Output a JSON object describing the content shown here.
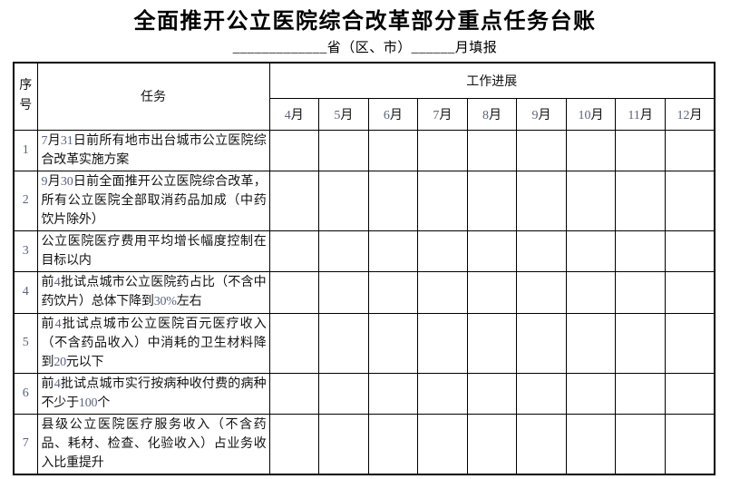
{
  "page": {
    "title": "全面推开公立医院综合改革部分重点任务台账",
    "subtitle": "_____________省（区、市）______月填报"
  },
  "table": {
    "header": {
      "serial": "序号",
      "task": "任务",
      "progress": "工作进展",
      "months": [
        "4月",
        "5月",
        "6月",
        "7月",
        "8月",
        "9月",
        "10月",
        "11月",
        "12月"
      ]
    },
    "rows": [
      {
        "no": "1",
        "task": "7月31日前所有地市出台城市公立医院综合改革实施方案"
      },
      {
        "no": "2",
        "task": "9月30日前全面推开公立医院综合改革，所有公立医院全部取消药品加成（中药饮片除外）"
      },
      {
        "no": "3",
        "task": "公立医院医疗费用平均增长幅度控制在目标以内"
      },
      {
        "no": "4",
        "task": "前4批试点城市公立医院药占比（不含中药饮片）总体下降到30%左右"
      },
      {
        "no": "5",
        "task": "前4批试点城市公立医院百元医疗收入（不含药品收入）中消耗的卫生材料降到20元以下"
      },
      {
        "no": "6",
        "task": "前4批试点城市实行按病种收付费的病种不少于100个"
      },
      {
        "no": "7",
        "task": "县级公立医院医疗服务收入（不含药品、耗材、检查、化验收入）占业务收入比重提升"
      }
    ]
  },
  "colors": {
    "text": "#111111",
    "digit": "#5b6480",
    "border": "#000000",
    "background": "#ffffff"
  }
}
